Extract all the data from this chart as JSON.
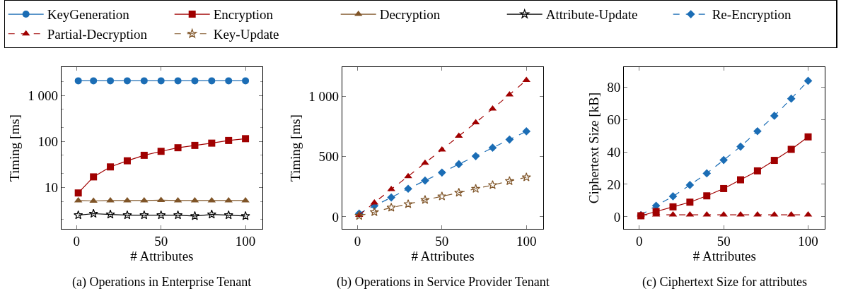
{
  "chart_data": [
    {
      "type": "line",
      "title": "(a) Operations in Enterprise Tenant",
      "xlabel": "# Attributes",
      "ylabel": "Timing [ms]",
      "log": "y",
      "x": [
        1,
        10,
        20,
        30,
        40,
        50,
        60,
        70,
        80,
        90,
        100
      ],
      "xlim": [
        -9,
        110
      ],
      "xticks": [
        0,
        50,
        100
      ],
      "ylim": [
        1.27,
        4100
      ],
      "yticks": [
        10,
        100,
        {
          "value": 1000,
          "label": "1 000"
        }
      ],
      "legend": "top",
      "series": [
        {
          "name": "KeyGeneration",
          "color": "#1b6db5",
          "marker": "circle",
          "line_style": "solid",
          "values": [
            2080,
            2080,
            2080,
            2080,
            2080,
            2080,
            2080,
            2080,
            2080,
            2080,
            2080
          ]
        },
        {
          "name": "Encryption",
          "color": "#a00000",
          "marker": "square",
          "line_style": "solid",
          "values": [
            7.6,
            17,
            28,
            38,
            50,
            61,
            73,
            82,
            92,
            105,
            115
          ]
        },
        {
          "name": "Decryption",
          "color": "#7f5427",
          "marker": "triangle",
          "line_style": "solid",
          "values": [
            5.2,
            5.1,
            5.2,
            5.2,
            5.2,
            5.3,
            5.2,
            5.2,
            5.2,
            5.2,
            5.2
          ]
        },
        {
          "name": "Attribute-Update",
          "color": "#000000",
          "marker": "star",
          "line_style": "solid",
          "values": [
            2.5,
            2.7,
            2.6,
            2.5,
            2.5,
            2.5,
            2.5,
            2.4,
            2.6,
            2.5,
            2.4
          ]
        }
      ]
    },
    {
      "type": "line",
      "title": "(b) Operations in Service Provider Tenant",
      "xlabel": "# Attributes",
      "ylabel": "Timing [ms]",
      "x": [
        1,
        10,
        20,
        30,
        40,
        50,
        60,
        70,
        80,
        90,
        100
      ],
      "xlim": [
        -9,
        110
      ],
      "xticks": [
        0,
        50,
        100
      ],
      "ylim": [
        -99,
        1239
      ],
      "yticks": [
        0,
        500,
        {
          "value": 1000,
          "label": "1 000"
        }
      ],
      "legend": "top",
      "series": [
        {
          "name": "Re-Encryption",
          "color": "#1b6db5",
          "marker": "diamond",
          "line_style": "dashed",
          "values": [
            27,
            91,
            160,
            232,
            300,
            366,
            436,
            502,
            572,
            640,
            708
          ]
        },
        {
          "name": "Partial-Decryption",
          "color": "#a00000",
          "marker": "triangle",
          "line_style": "dashed",
          "values": [
            14,
            117,
            228,
            335,
            446,
            556,
            669,
            780,
            895,
            1012,
            1132
          ]
        },
        {
          "name": "Key-Update",
          "color": "#7f5427",
          "marker": "star",
          "line_style": "dashed",
          "values": [
            8,
            39,
            76,
            105,
            140,
            169,
            200,
            232,
            263,
            296,
            327
          ]
        }
      ]
    },
    {
      "type": "line",
      "title": "(c) Ciphertext Size for attributes",
      "xlabel": "# Attributes",
      "ylabel": "Ciphertext Size [kB]",
      "x": [
        1,
        10,
        20,
        30,
        40,
        50,
        60,
        70,
        80,
        90,
        100
      ],
      "xlim": [
        -9,
        110
      ],
      "xticks": [
        0,
        50,
        100
      ],
      "ylim": [
        -7.4,
        92.3
      ],
      "yticks": [
        0,
        20,
        40,
        60,
        80
      ],
      "legend": "top",
      "series": [
        {
          "name": "Re-Encryption",
          "color": "#1b6db5",
          "marker": "diamond",
          "line_style": "dashed",
          "values": [
            1.0,
            6.8,
            12.6,
            19.6,
            26.8,
            35,
            43.3,
            52.8,
            62.3,
            72.9,
            83.9
          ]
        },
        {
          "name": "Encryption",
          "color": "#a00000",
          "marker": "square",
          "line_style": "solid",
          "values": [
            0.6,
            3.2,
            6.1,
            9,
            12.9,
            17.4,
            22.8,
            28.3,
            34.8,
            41.6,
            49.3
          ]
        },
        {
          "name": "Partial-Decryption",
          "color": "#a00000",
          "marker": "triangle",
          "line_style": "dashed",
          "values": [
            1.2,
            1.2,
            1.2,
            1.2,
            1.2,
            1.2,
            1.2,
            1.2,
            1.2,
            1.2,
            1.2
          ]
        }
      ]
    }
  ]
}
